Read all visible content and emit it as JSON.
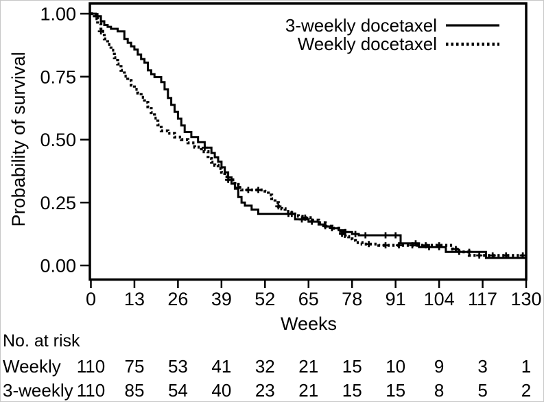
{
  "figure": {
    "background_color": "#ffffff",
    "ink_color": "#000000",
    "frame_color": "#c6c6c6"
  },
  "chart_data": {
    "type": "line",
    "subtype": "kaplan_meier_step",
    "title": "",
    "xlabel": "Weeks",
    "ylabel": "Probability of survival",
    "xlim": [
      0,
      130
    ],
    "ylim": [
      0,
      1
    ],
    "grid": false,
    "legend_position": "top-right-inside",
    "x_ticks": [
      0,
      13,
      26,
      39,
      52,
      65,
      78,
      91,
      104,
      117,
      130
    ],
    "y_ticks": [
      {
        "value": 1.0,
        "label": "1.00"
      },
      {
        "value": 0.75,
        "label": "0.75"
      },
      {
        "value": 0.5,
        "label": "0.50"
      },
      {
        "value": 0.25,
        "label": "0.25"
      },
      {
        "value": 0.0,
        "label": "0.00"
      }
    ],
    "series": [
      {
        "name": "3-weekly docetaxel",
        "style": "solid",
        "points": [
          [
            0,
            1.0
          ],
          [
            1.5,
            0.99
          ],
          [
            3,
            0.97
          ],
          [
            4,
            0.955
          ],
          [
            5,
            0.948
          ],
          [
            6,
            0.94
          ],
          [
            8,
            0.93
          ],
          [
            10,
            0.9
          ],
          [
            11,
            0.885
          ],
          [
            12,
            0.87
          ],
          [
            13,
            0.858
          ],
          [
            14,
            0.838
          ],
          [
            15,
            0.82
          ],
          [
            16,
            0.806
          ],
          [
            17,
            0.775
          ],
          [
            18,
            0.76
          ],
          [
            19,
            0.748
          ],
          [
            21,
            0.728
          ],
          [
            22,
            0.7
          ],
          [
            23,
            0.665
          ],
          [
            24,
            0.638
          ],
          [
            25,
            0.61
          ],
          [
            26,
            0.583
          ],
          [
            27,
            0.556
          ],
          [
            28,
            0.53
          ],
          [
            30,
            0.51
          ],
          [
            32,
            0.49
          ],
          [
            34,
            0.468
          ],
          [
            36,
            0.447
          ],
          [
            37,
            0.43
          ],
          [
            38,
            0.412
          ],
          [
            39,
            0.39
          ],
          [
            40,
            0.37
          ],
          [
            41,
            0.35
          ],
          [
            42,
            0.325
          ],
          [
            43,
            0.305
          ],
          [
            44,
            0.272
          ],
          [
            45,
            0.25
          ],
          [
            46,
            0.238
          ],
          [
            48,
            0.222
          ],
          [
            50,
            0.205
          ],
          [
            61,
            0.183
          ],
          [
            65,
            0.174
          ],
          [
            68,
            0.163
          ],
          [
            70,
            0.155
          ],
          [
            72,
            0.148
          ],
          [
            74,
            0.14
          ],
          [
            76,
            0.133
          ],
          [
            78,
            0.125
          ],
          [
            80,
            0.12
          ],
          [
            92.5,
            0.088
          ],
          [
            98,
            0.073
          ],
          [
            106,
            0.054
          ],
          [
            117.5,
            0.054
          ],
          [
            118,
            0.03
          ],
          [
            130,
            0.03
          ]
        ],
        "censor_weeks": [
          2,
          34,
          59,
          63,
          66,
          72,
          76,
          79,
          82,
          88,
          91,
          97,
          101,
          104,
          110,
          113
        ]
      },
      {
        "name": "Weekly docetaxel",
        "style": "dotted",
        "points": [
          [
            0,
            1.0
          ],
          [
            1,
            0.98
          ],
          [
            2,
            0.96
          ],
          [
            3,
            0.93
          ],
          [
            4,
            0.9
          ],
          [
            5,
            0.878
          ],
          [
            6,
            0.855
          ],
          [
            7,
            0.825
          ],
          [
            8,
            0.8
          ],
          [
            9,
            0.775
          ],
          [
            10,
            0.752
          ],
          [
            11,
            0.735
          ],
          [
            12,
            0.716
          ],
          [
            13,
            0.7
          ],
          [
            14,
            0.685
          ],
          [
            15,
            0.668
          ],
          [
            16,
            0.648
          ],
          [
            17,
            0.63
          ],
          [
            18,
            0.607
          ],
          [
            19,
            0.585
          ],
          [
            20,
            0.558
          ],
          [
            21,
            0.535
          ],
          [
            23,
            0.525
          ],
          [
            25,
            0.51
          ],
          [
            27,
            0.5
          ],
          [
            29,
            0.487
          ],
          [
            31,
            0.47
          ],
          [
            33,
            0.452
          ],
          [
            35,
            0.425
          ],
          [
            36,
            0.41
          ],
          [
            37,
            0.398
          ],
          [
            38,
            0.385
          ],
          [
            39,
            0.37
          ],
          [
            40,
            0.352
          ],
          [
            41,
            0.34
          ],
          [
            43,
            0.322
          ],
          [
            44,
            0.31
          ],
          [
            45,
            0.3
          ],
          [
            52,
            0.295
          ],
          [
            53,
            0.28
          ],
          [
            54,
            0.265
          ],
          [
            55,
            0.25
          ],
          [
            56,
            0.235
          ],
          [
            57,
            0.225
          ],
          [
            58,
            0.215
          ],
          [
            60,
            0.205
          ],
          [
            62,
            0.196
          ],
          [
            64,
            0.19
          ],
          [
            66,
            0.18
          ],
          [
            68,
            0.17
          ],
          [
            70,
            0.156
          ],
          [
            72,
            0.148
          ],
          [
            74,
            0.136
          ],
          [
            75,
            0.126
          ],
          [
            76,
            0.115
          ],
          [
            77,
            0.106
          ],
          [
            78,
            0.1
          ],
          [
            79,
            0.091
          ],
          [
            81,
            0.085
          ],
          [
            86,
            0.08
          ],
          [
            107,
            0.08
          ],
          [
            108,
            0.065
          ],
          [
            110,
            0.054
          ],
          [
            113,
            0.04
          ],
          [
            130,
            0.04
          ]
        ],
        "censor_weeks": [
          3,
          41,
          44,
          47,
          50,
          56,
          60,
          64,
          70,
          75,
          83,
          88,
          92,
          96,
          100,
          104,
          109,
          116,
          120,
          124,
          129
        ]
      }
    ],
    "at_risk": {
      "label": "No. at risk",
      "rows": [
        {
          "label": "Weekly",
          "values": [
            110,
            75,
            53,
            41,
            32,
            21,
            15,
            10,
            9,
            3,
            1
          ]
        },
        {
          "label": "3-weekly",
          "values": [
            110,
            85,
            54,
            40,
            23,
            21,
            15,
            15,
            8,
            5,
            2
          ]
        }
      ]
    }
  }
}
